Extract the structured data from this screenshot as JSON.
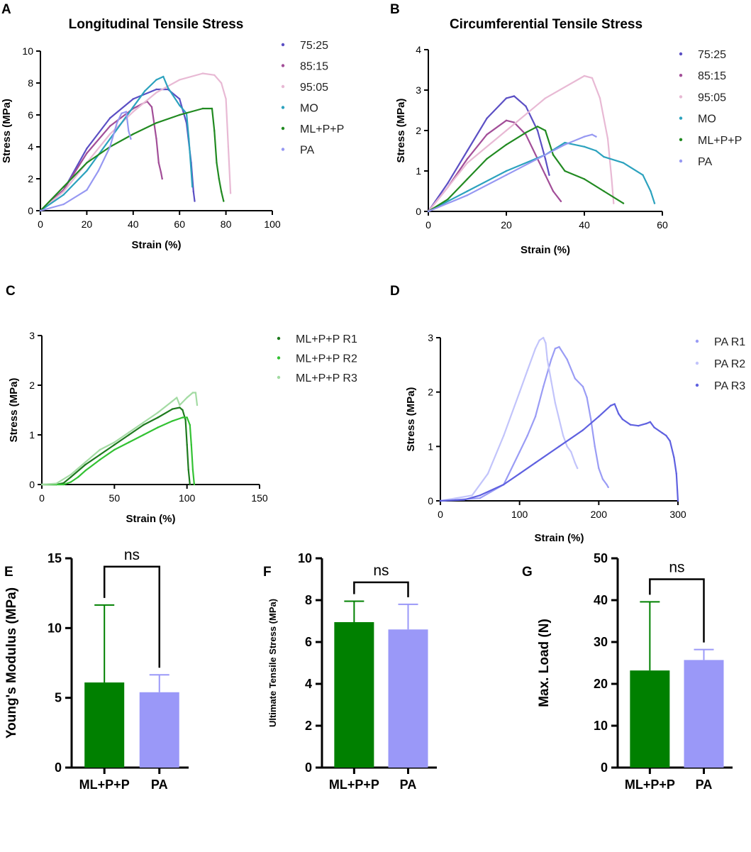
{
  "panels": {
    "A": "A",
    "B": "B",
    "C": "C",
    "D": "D",
    "E": "E",
    "F": "F",
    "G": "G"
  },
  "colors": {
    "r75_25": "#5b4fc4",
    "r85_15": "#a24e98",
    "r95_05": "#e8b9d4",
    "mo": "#2ca2be",
    "mlpp": "#218a21",
    "pa": "#9698f2",
    "mlpp_r1": "#1e7a1e",
    "mlpp_r2": "#33c233",
    "mlpp_r3": "#a3dba3",
    "pa_r1": "#9a9cf5",
    "pa_r2": "#c2c4fb",
    "pa_r3": "#5f61e0",
    "bar_green": "#008000",
    "bar_lavender": "#9a98f8"
  },
  "chart_data": [
    {
      "id": "A",
      "type": "line",
      "title": "Longitudinal Tensile Stress",
      "xlabel": "Strain (%)",
      "ylabel": "Stress (MPa)",
      "xlim": [
        0,
        100
      ],
      "ylim": [
        0,
        10
      ],
      "xticks": [
        0,
        20,
        40,
        60,
        80,
        100
      ],
      "yticks": [
        0,
        2,
        4,
        6,
        8,
        10
      ],
      "series": [
        {
          "name": "75:25",
          "color_key": "r75_25",
          "x": [
            0,
            10,
            20,
            30,
            40,
            50,
            55,
            60,
            63,
            65,
            66,
            66.5
          ],
          "y": [
            0,
            1.3,
            3.9,
            5.8,
            7.0,
            7.6,
            7.6,
            7.0,
            5.5,
            3.0,
            1.2,
            0.6
          ]
        },
        {
          "name": "85:15",
          "color_key": "r85_15",
          "x": [
            0,
            10,
            20,
            30,
            40,
            46,
            48,
            50,
            51,
            52,
            52.5
          ],
          "y": [
            0,
            1.3,
            3.6,
            5.3,
            6.4,
            6.85,
            6.5,
            4.5,
            3.0,
            2.4,
            2.0
          ]
        },
        {
          "name": "95:05",
          "color_key": "r95_05",
          "x": [
            0,
            10,
            20,
            30,
            40,
            50,
            60,
            70,
            75,
            78,
            80,
            81,
            82
          ],
          "y": [
            0,
            1.2,
            3.0,
            4.8,
            6.2,
            7.4,
            8.2,
            8.6,
            8.5,
            8.0,
            7.0,
            4.0,
            1.1
          ]
        },
        {
          "name": "MO",
          "color_key": "mo",
          "x": [
            0,
            10,
            20,
            30,
            40,
            45,
            50,
            53,
            55,
            60,
            63,
            64,
            65,
            65.5
          ],
          "y": [
            0,
            1.0,
            2.5,
            4.5,
            6.5,
            7.5,
            8.2,
            8.4,
            7.7,
            6.6,
            6.1,
            4.5,
            2.5,
            1.5
          ]
        },
        {
          "name": "ML+P+P",
          "color_key": "mlpp",
          "x": [
            0,
            10,
            20,
            30,
            40,
            50,
            60,
            70,
            74,
            75,
            76,
            77,
            78,
            79
          ],
          "y": [
            0,
            1.5,
            3.0,
            4.0,
            4.8,
            5.5,
            6.0,
            6.4,
            6.4,
            5.0,
            3.0,
            2.0,
            1.2,
            0.6
          ]
        },
        {
          "name": "PA",
          "color_key": "pa",
          "x": [
            0,
            10,
            20,
            25,
            30,
            33,
            35,
            37,
            38,
            39
          ],
          "y": [
            0,
            0.4,
            1.3,
            2.5,
            4.0,
            5.5,
            6.1,
            6.2,
            5.0,
            4.5
          ]
        }
      ],
      "legend": "right"
    },
    {
      "id": "B",
      "type": "line",
      "title": "Circumferential Tensile Stress",
      "xlabel": "Strain (%)",
      "ylabel": "Stress (MPa)",
      "xlim": [
        0,
        60
      ],
      "ylim": [
        0,
        4
      ],
      "xticks": [
        0,
        20,
        40,
        60
      ],
      "yticks": [
        0,
        1,
        2,
        3,
        4
      ],
      "series": [
        {
          "name": "75:25",
          "color_key": "r75_25",
          "x": [
            0,
            5,
            10,
            15,
            20,
            22,
            25,
            28,
            30,
            31
          ],
          "y": [
            0,
            0.7,
            1.5,
            2.3,
            2.8,
            2.85,
            2.6,
            2.0,
            1.3,
            0.9
          ]
        },
        {
          "name": "85:15",
          "color_key": "r85_15",
          "x": [
            0,
            5,
            10,
            15,
            20,
            22,
            25,
            28,
            30,
            32,
            34
          ],
          "y": [
            0,
            0.6,
            1.3,
            1.9,
            2.25,
            2.2,
            1.9,
            1.3,
            0.9,
            0.5,
            0.25
          ]
        },
        {
          "name": "95:05",
          "color_key": "r95_05",
          "x": [
            0,
            10,
            20,
            30,
            40,
            42,
            44,
            46,
            47,
            47.5
          ],
          "y": [
            0,
            1.2,
            2.0,
            2.8,
            3.35,
            3.3,
            2.8,
            1.8,
            0.8,
            0.2
          ]
        },
        {
          "name": "MO",
          "color_key": "mo",
          "x": [
            0,
            10,
            20,
            30,
            35,
            40,
            43,
            45,
            50,
            55,
            57,
            58
          ],
          "y": [
            0,
            0.5,
            1.0,
            1.4,
            1.7,
            1.6,
            1.5,
            1.35,
            1.2,
            0.9,
            0.5,
            0.2
          ]
        },
        {
          "name": "ML+P+P",
          "color_key": "mlpp",
          "x": [
            0,
            5,
            10,
            15,
            20,
            25,
            28,
            30,
            32,
            35,
            40,
            45,
            50
          ],
          "y": [
            0,
            0.3,
            0.8,
            1.3,
            1.65,
            1.95,
            2.1,
            2.0,
            1.4,
            1.0,
            0.8,
            0.5,
            0.2
          ]
        },
        {
          "name": "PA",
          "color_key": "pa",
          "x": [
            0,
            10,
            20,
            30,
            35,
            40,
            42,
            43
          ],
          "y": [
            0,
            0.4,
            0.9,
            1.4,
            1.65,
            1.85,
            1.9,
            1.85
          ]
        }
      ],
      "legend": "right"
    },
    {
      "id": "C",
      "type": "line",
      "title": "",
      "xlabel": "Strain (%)",
      "ylabel": "Stress (MPa)",
      "xlim": [
        0,
        150
      ],
      "ylim": [
        0,
        3
      ],
      "xticks": [
        0,
        50,
        100,
        150
      ],
      "yticks": [
        0,
        1,
        2,
        3
      ],
      "series": [
        {
          "name": "ML+P+P R1",
          "color_key": "mlpp_r1",
          "x": [
            0,
            10,
            15,
            20,
            30,
            40,
            50,
            60,
            70,
            80,
            90,
            95,
            97,
            99,
            100,
            101,
            102
          ],
          "y": [
            0,
            0,
            0.03,
            0.15,
            0.4,
            0.6,
            0.8,
            1.0,
            1.2,
            1.35,
            1.52,
            1.55,
            1.5,
            1.3,
            0.8,
            0.3,
            0.0
          ]
        },
        {
          "name": "ML+P+P R2",
          "color_key": "mlpp_r2",
          "x": [
            0,
            15,
            20,
            25,
            30,
            40,
            50,
            60,
            70,
            80,
            90,
            97,
            100,
            102,
            103,
            104,
            105
          ],
          "y": [
            0,
            0,
            0.05,
            0.15,
            0.28,
            0.5,
            0.7,
            0.85,
            1.0,
            1.15,
            1.28,
            1.35,
            1.35,
            1.2,
            0.8,
            0.3,
            0.0
          ]
        },
        {
          "name": "ML+P+P R3",
          "color_key": "mlpp_r3",
          "x": [
            0,
            10,
            20,
            30,
            40,
            50,
            60,
            70,
            80,
            90,
            93,
            95,
            100,
            104,
            106,
            107
          ],
          "y": [
            0,
            0.02,
            0.2,
            0.45,
            0.7,
            0.85,
            1.05,
            1.25,
            1.45,
            1.68,
            1.75,
            1.6,
            1.75,
            1.85,
            1.85,
            1.6
          ]
        }
      ],
      "legend": "right"
    },
    {
      "id": "D",
      "type": "line",
      "title": "",
      "xlabel": "Strain (%)",
      "ylabel": "Stress (MPa)",
      "xlim": [
        0,
        300
      ],
      "ylim": [
        0,
        3
      ],
      "xticks": [
        0,
        100,
        200,
        300
      ],
      "yticks": [
        0,
        1,
        2,
        3
      ],
      "series": [
        {
          "name": "PA R1",
          "color_key": "pa_r1",
          "x": [
            0,
            50,
            80,
            100,
            110,
            120,
            130,
            140,
            145,
            150,
            160,
            170,
            180,
            185,
            190,
            195,
            200,
            205,
            210,
            212
          ],
          "y": [
            0,
            0.05,
            0.3,
            0.9,
            1.2,
            1.55,
            2.1,
            2.6,
            2.8,
            2.83,
            2.6,
            2.25,
            2.1,
            1.9,
            1.5,
            1.0,
            0.6,
            0.4,
            0.3,
            0.25
          ]
        },
        {
          "name": "PA R2",
          "color_key": "pa_r2",
          "x": [
            0,
            40,
            60,
            80,
            100,
            110,
            120,
            125,
            130,
            133,
            135,
            140,
            145,
            150,
            155,
            160,
            165,
            170,
            173
          ],
          "y": [
            0,
            0.1,
            0.5,
            1.2,
            2.0,
            2.4,
            2.8,
            2.95,
            3.0,
            2.9,
            2.6,
            2.2,
            1.8,
            1.5,
            1.2,
            1.0,
            0.9,
            0.7,
            0.6
          ]
        },
        {
          "name": "PA R3",
          "color_key": "pa_r3",
          "x": [
            0,
            30,
            50,
            80,
            100,
            120,
            150,
            180,
            200,
            215,
            220,
            225,
            230,
            240,
            250,
            260,
            265,
            270,
            280,
            285,
            290,
            295,
            298,
            300
          ],
          "y": [
            0,
            0.02,
            0.1,
            0.3,
            0.5,
            0.7,
            1.0,
            1.3,
            1.55,
            1.75,
            1.78,
            1.6,
            1.5,
            1.4,
            1.38,
            1.42,
            1.45,
            1.35,
            1.25,
            1.2,
            1.1,
            0.8,
            0.5,
            0.0
          ]
        }
      ],
      "legend": "right"
    },
    {
      "id": "E",
      "type": "bar",
      "title": "",
      "xlabel": "",
      "ylabel": "Young's Modulus (MPa)",
      "ylim": [
        0,
        15
      ],
      "yticks": [
        0,
        5,
        10,
        15
      ],
      "categories": [
        "ML+P+P",
        "PA"
      ],
      "values": [
        6.1,
        5.4
      ],
      "errors": [
        5.55,
        1.25
      ],
      "bar_color_keys": [
        "bar_green",
        "bar_lavender"
      ],
      "significance": "ns",
      "bracket_y": 14.4
    },
    {
      "id": "F",
      "type": "bar",
      "title": "",
      "xlabel": "",
      "ylabel": "Ultimate Tensile Stress (MPa)",
      "ylim": [
        0,
        10
      ],
      "yticks": [
        0,
        2,
        4,
        6,
        8,
        10
      ],
      "categories": [
        "ML+P+P",
        "PA"
      ],
      "values": [
        6.95,
        6.6
      ],
      "errors": [
        1.0,
        1.2
      ],
      "bar_color_keys": [
        "bar_green",
        "bar_lavender"
      ],
      "significance": "ns",
      "bracket_y": 8.85
    },
    {
      "id": "G",
      "type": "bar",
      "title": "",
      "xlabel": "",
      "ylabel": "Max. Load (N)",
      "ylim": [
        0,
        50
      ],
      "yticks": [
        0,
        10,
        20,
        30,
        40,
        50
      ],
      "categories": [
        "ML+P+P",
        "PA"
      ],
      "values": [
        23.2,
        25.7
      ],
      "errors": [
        16.4,
        2.5
      ],
      "bar_color_keys": [
        "bar_green",
        "bar_lavender"
      ],
      "significance": "ns",
      "bracket_y": 45.0
    }
  ]
}
